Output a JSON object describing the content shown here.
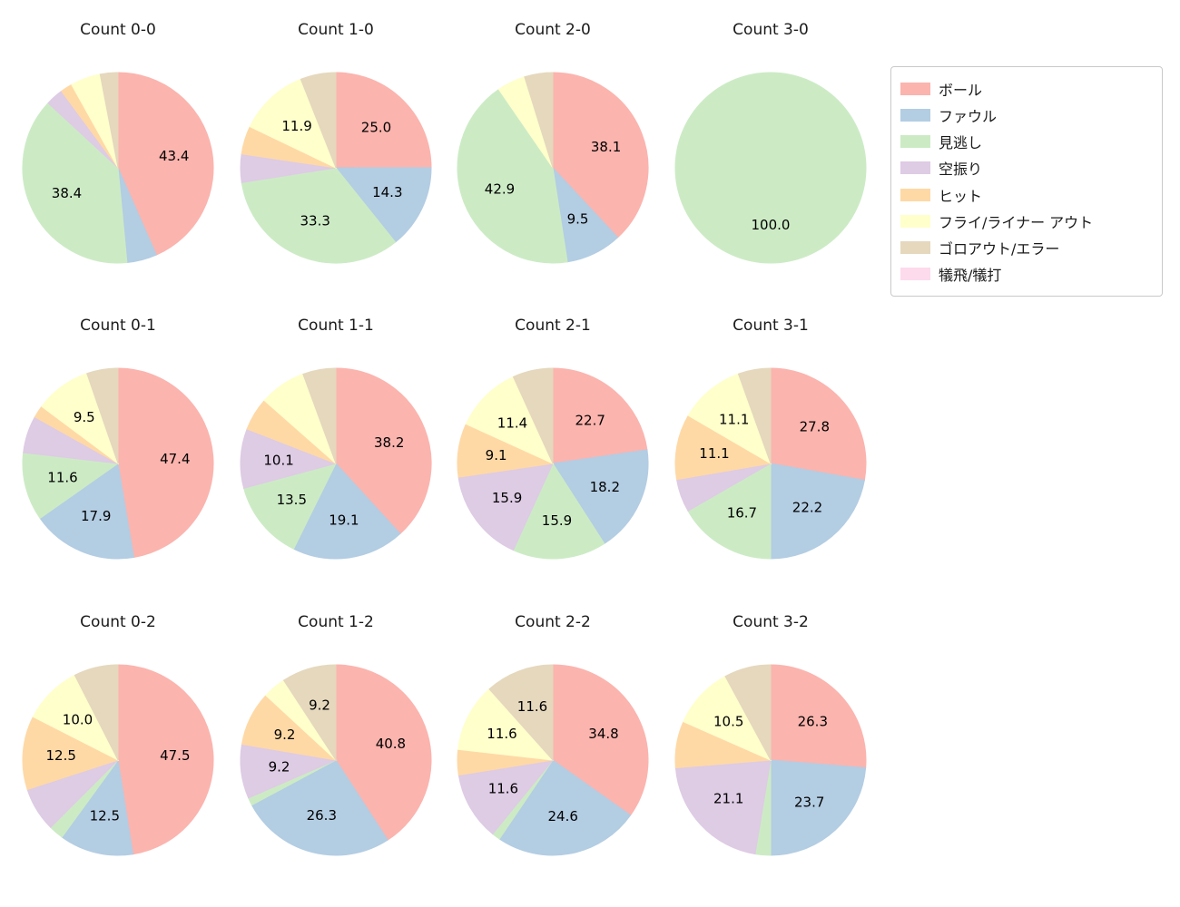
{
  "figure": {
    "background": "#ffffff",
    "text_color": "#1a1a1a"
  },
  "legend": {
    "entries": [
      {
        "label": "ボール",
        "color": "#fbb4ae"
      },
      {
        "label": "ファウル",
        "color": "#b3cde3"
      },
      {
        "label": "見逃し",
        "color": "#ccebc5"
      },
      {
        "label": "空振り",
        "color": "#decbe4"
      },
      {
        "label": "ヒット",
        "color": "#fed9a6"
      },
      {
        "label": "フライ/ライナー アウト",
        "color": "#ffffcc"
      },
      {
        "label": "ゴロアウト/エラー",
        "color": "#e5d8bd"
      },
      {
        "label": "犠飛/犠打",
        "color": "#fddaec"
      }
    ]
  },
  "chart_data": {
    "type": "pie",
    "layout": {
      "rows": 3,
      "cols": 4
    },
    "start_angle": "top",
    "direction": "clockwise",
    "pct_label_min": 9.0,
    "pct_label_distance": 0.6,
    "categories": [
      "ボール",
      "ファウル",
      "見逃し",
      "空振り",
      "ヒット",
      "フライ/ライナー アウト",
      "ゴロアウト/エラー",
      "犠飛/犠打"
    ],
    "category_keys": [
      "ball",
      "foul",
      "called-strike",
      "swinging-strike",
      "hit",
      "fly-liner-out",
      "groundout-error",
      "sacrifice"
    ],
    "colors": [
      "#fbb4ae",
      "#b3cde3",
      "#ccebc5",
      "#decbe4",
      "#fed9a6",
      "#ffffcc",
      "#e5d8bd",
      "#fddaec"
    ],
    "charts": [
      {
        "title": "Count 0-0",
        "values": [
          43.4,
          5.1,
          38.4,
          3.0,
          2.0,
          5.1,
          3.0,
          0
        ]
      },
      {
        "title": "Count 1-0",
        "values": [
          25.0,
          14.3,
          33.3,
          4.8,
          4.8,
          11.9,
          6.0,
          0
        ]
      },
      {
        "title": "Count 2-0",
        "values": [
          38.1,
          9.5,
          42.9,
          0,
          0,
          4.8,
          4.8,
          0
        ]
      },
      {
        "title": "Count 3-0",
        "values": [
          0,
          0,
          100.0,
          0,
          0,
          0,
          0,
          0
        ]
      },
      {
        "title": "Count 0-1",
        "values": [
          47.4,
          17.9,
          11.6,
          6.3,
          2.1,
          9.5,
          5.3,
          0
        ]
      },
      {
        "title": "Count 1-1",
        "values": [
          38.2,
          19.1,
          13.5,
          10.1,
          5.6,
          7.9,
          5.6,
          0
        ]
      },
      {
        "title": "Count 2-1",
        "values": [
          22.7,
          18.2,
          15.9,
          15.9,
          9.1,
          11.4,
          6.8,
          0
        ]
      },
      {
        "title": "Count 3-1",
        "values": [
          27.8,
          22.2,
          16.7,
          5.6,
          11.1,
          11.1,
          5.5,
          0
        ]
      },
      {
        "title": "Count 0-2",
        "values": [
          47.5,
          12.5,
          2.5,
          7.5,
          12.5,
          10.0,
          7.5,
          0
        ]
      },
      {
        "title": "Count 1-2",
        "values": [
          40.8,
          26.3,
          1.3,
          9.2,
          9.2,
          3.9,
          9.2,
          0
        ]
      },
      {
        "title": "Count 2-2",
        "values": [
          34.8,
          24.6,
          1.4,
          11.6,
          4.3,
          11.6,
          11.6,
          0
        ]
      },
      {
        "title": "Count 3-2",
        "values": [
          26.3,
          23.7,
          2.6,
          21.1,
          7.9,
          10.5,
          7.9,
          0
        ]
      }
    ]
  }
}
